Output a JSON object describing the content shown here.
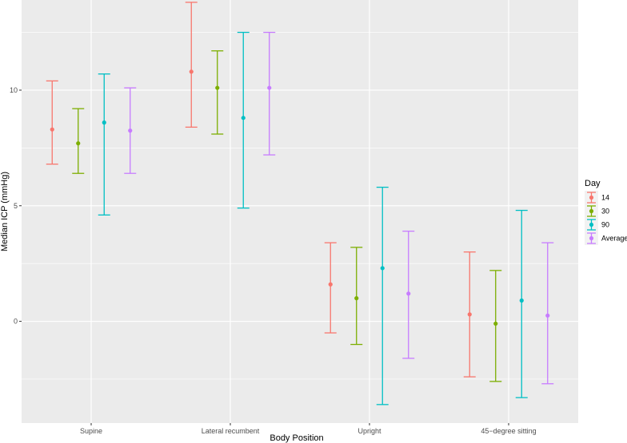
{
  "chart_data": {
    "type": "errorbar",
    "title": "",
    "xlabel": "Body Position",
    "ylabel": "Median ICP (mmHg)",
    "ylim": [
      -4.4,
      13.9
    ],
    "yticks": [
      0,
      5,
      10
    ],
    "categories": [
      "Supine",
      "Lateral recumbent",
      "Upright",
      "45−degree sitting"
    ],
    "legend_title": "Day",
    "legend_position": "right",
    "series": [
      {
        "name": "14",
        "color": "#F8766D",
        "points": [
          {
            "median": 8.3,
            "low": 6.8,
            "high": 10.4
          },
          {
            "median": 10.8,
            "low": 8.4,
            "high": 13.8
          },
          {
            "median": 1.6,
            "low": -0.5,
            "high": 3.4
          },
          {
            "median": 0.3,
            "low": -2.4,
            "high": 3.0
          }
        ]
      },
      {
        "name": "30",
        "color": "#7CAE00",
        "points": [
          {
            "median": 7.7,
            "low": 6.4,
            "high": 9.2
          },
          {
            "median": 10.1,
            "low": 8.1,
            "high": 11.7
          },
          {
            "median": 1.0,
            "low": -1.0,
            "high": 3.2
          },
          {
            "median": -0.1,
            "low": -2.6,
            "high": 2.2
          }
        ]
      },
      {
        "name": "90",
        "color": "#00BFC4",
        "points": [
          {
            "median": 8.6,
            "low": 4.6,
            "high": 10.7
          },
          {
            "median": 8.8,
            "low": 4.9,
            "high": 12.5
          },
          {
            "median": 2.3,
            "low": -3.6,
            "high": 5.8
          },
          {
            "median": 0.9,
            "low": -3.3,
            "high": 4.8
          }
        ]
      },
      {
        "name": "Average",
        "color": "#C77CFF",
        "points": [
          {
            "median": 8.25,
            "low": 6.4,
            "high": 10.1
          },
          {
            "median": 10.1,
            "low": 7.2,
            "high": 12.5
          },
          {
            "median": 1.2,
            "low": -1.6,
            "high": 3.9
          },
          {
            "median": 0.25,
            "low": -2.7,
            "high": 3.4
          }
        ]
      }
    ]
  }
}
